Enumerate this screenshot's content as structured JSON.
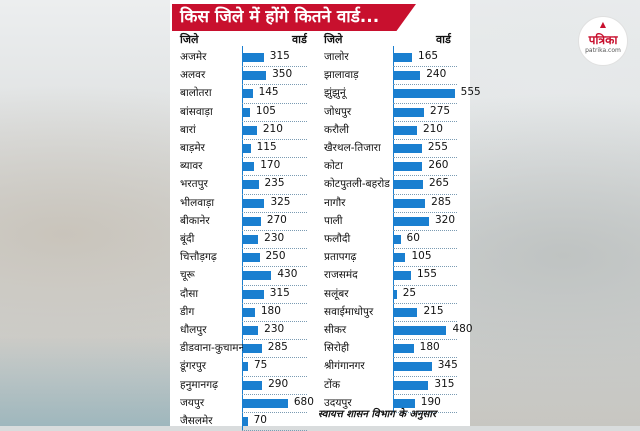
{
  "title": "किस जिले में होंगे कितने वार्ड...",
  "logo": {
    "name": "पत्रिका",
    "sub": "patrika.com"
  },
  "colors": {
    "title_bg": "#c8102e",
    "bar": "#1a7fd0"
  },
  "source": "स्वायत्त शासन विभाग के अनुसार",
  "chart_data": {
    "type": "bar",
    "title": "किस जिले में होंगे कितने वार्ड...",
    "category_header": "जिले",
    "value_header": "वार्ड",
    "columns": [
      {
        "header_district": "जिले",
        "header_wards": "वार्ड",
        "rows": [
          {
            "district": "अजमेर",
            "wards": 315
          },
          {
            "district": "अलवर",
            "wards": 350
          },
          {
            "district": "बालोतरा",
            "wards": 145
          },
          {
            "district": "बांसवाड़ा",
            "wards": 105
          },
          {
            "district": "बारां",
            "wards": 210
          },
          {
            "district": "बाड़मेर",
            "wards": 115
          },
          {
            "district": "ब्यावर",
            "wards": 170
          },
          {
            "district": "भरतपुर",
            "wards": 235
          },
          {
            "district": "भीलवाड़ा",
            "wards": 325
          },
          {
            "district": "बीकानेर",
            "wards": 270
          },
          {
            "district": "बूंदी",
            "wards": 230
          },
          {
            "district": "चित्तौड़गढ़",
            "wards": 250
          },
          {
            "district": "चूरू",
            "wards": 430
          },
          {
            "district": "दौसा",
            "wards": 315
          },
          {
            "district": "डीग",
            "wards": 180
          },
          {
            "district": "धौलपुर",
            "wards": 230
          },
          {
            "district": "डीडवाना-कुचामन",
            "wards": 285
          },
          {
            "district": "डूंगरपुर",
            "wards": 75
          },
          {
            "district": "हनुमानगढ़",
            "wards": 290
          },
          {
            "district": "जयपुर",
            "wards": 680
          },
          {
            "district": "जैसलमेर",
            "wards": 70
          }
        ]
      },
      {
        "header_district": "जिले",
        "header_wards": "वार्ड",
        "rows": [
          {
            "district": "जालोर",
            "wards": 165
          },
          {
            "district": "झालावाड़",
            "wards": 240
          },
          {
            "district": "झुंझुनूं",
            "wards": 555
          },
          {
            "district": "जोधपुर",
            "wards": 275
          },
          {
            "district": "करौली",
            "wards": 210
          },
          {
            "district": "खैरथल-तिजारा",
            "wards": 255
          },
          {
            "district": "कोटा",
            "wards": 260
          },
          {
            "district": "कोटपुतली-बहरोड",
            "wards": 265
          },
          {
            "district": "नागौर",
            "wards": 285
          },
          {
            "district": "पाली",
            "wards": 320
          },
          {
            "district": "फलौदी",
            "wards": 60
          },
          {
            "district": "प्रतापगढ़",
            "wards": 105
          },
          {
            "district": "राजसमंद",
            "wards": 155
          },
          {
            "district": "सलूंबर",
            "wards": 25
          },
          {
            "district": "सवाईमाधोपुर",
            "wards": 215
          },
          {
            "district": "सीकर",
            "wards": 480
          },
          {
            "district": "सिरोही",
            "wards": 180
          },
          {
            "district": "श्रीगंगानगर",
            "wards": 345
          },
          {
            "district": "टोंक",
            "wards": 315
          },
          {
            "district": "उदयपुर",
            "wards": 190
          }
        ]
      }
    ]
  }
}
